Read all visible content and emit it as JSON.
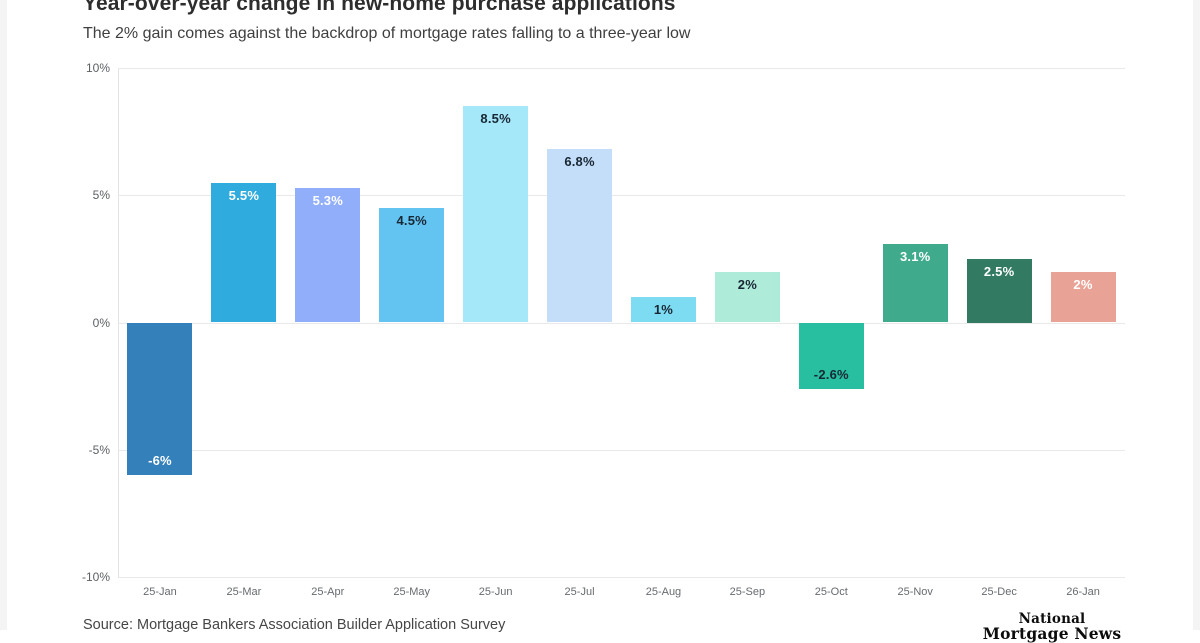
{
  "header": {
    "title": "Year-over-year change in new-home purchase applications",
    "subtitle": "The 2% gain comes against the backdrop of mortgage rates falling to a three-year low"
  },
  "footer": {
    "source": "Source: Mortgage Bankers Association Builder Application Survey",
    "logo_line1": "National",
    "logo_line2": "Mortgage News"
  },
  "chart_data": {
    "type": "bar",
    "title": "Year-over-year change in new-home purchase applications",
    "subtitle": "The 2% gain comes against the backdrop of mortgage rates falling to a three-year low",
    "xlabel": "",
    "ylabel": "",
    "ylim": [
      -10,
      10
    ],
    "grid": true,
    "legend": "none",
    "yticks": [
      {
        "value": 10,
        "label": "10%"
      },
      {
        "value": 5,
        "label": "5%"
      },
      {
        "value": 0,
        "label": "0%"
      },
      {
        "value": -5,
        "label": "-5%"
      },
      {
        "value": -10,
        "label": "-10%"
      }
    ],
    "categories": [
      "25-Jan",
      "25-Mar",
      "25-Apr",
      "25-May",
      "25-Jun",
      "25-Jul",
      "25-Aug",
      "25-Sep",
      "25-Oct",
      "25-Nov",
      "25-Dec",
      "26-Jan"
    ],
    "values": [
      -6,
      5.5,
      5.3,
      4.5,
      8.5,
      6.8,
      1,
      2,
      -2.6,
      3.1,
      2.5,
      2
    ],
    "bar_labels": [
      "-6%",
      "5.5%",
      "5.3%",
      "4.5%",
      "8.5%",
      "6.8%",
      "1%",
      "2%",
      "-2.6%",
      "3.1%",
      "2.5%",
      "2%"
    ],
    "bar_colors": [
      "#3480bb",
      "#2fabdd",
      "#91aefa",
      "#63c4f2",
      "#a5e8f9",
      "#c4ddf8",
      "#7edcf2",
      "#aeebd8",
      "#27bfa0",
      "#3faa8c",
      "#337a62",
      "#e9a396"
    ],
    "label_colors": [
      "#ffffff",
      "#ffffff",
      "#ffffff",
      "#192734",
      "#192734",
      "#192734",
      "#192734",
      "#192734",
      "#192734",
      "#ffffff",
      "#ffffff",
      "#ffffff"
    ]
  }
}
